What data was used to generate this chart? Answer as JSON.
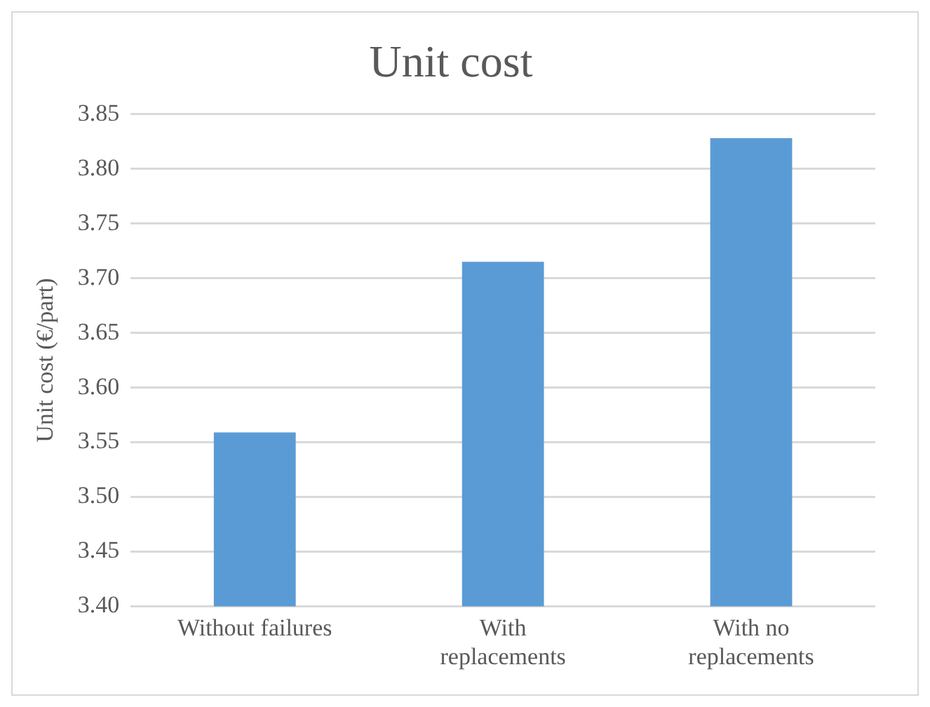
{
  "chart_data": {
    "type": "bar",
    "title": "Unit cost",
    "ylabel": "Unit cost (€/part)",
    "categories": [
      "Without failures",
      "With replacements",
      "With no replacements"
    ],
    "values": [
      3.559,
      3.715,
      3.828
    ],
    "color": "#5b9bd5",
    "ylim": [
      3.4,
      3.85
    ],
    "yticks": [
      {
        "value": 3.4,
        "label": "3.40"
      },
      {
        "value": 3.45,
        "label": "3.45"
      },
      {
        "value": 3.5,
        "label": "3.50"
      },
      {
        "value": 3.55,
        "label": "3.55"
      },
      {
        "value": 3.6,
        "label": "3.60"
      },
      {
        "value": 3.65,
        "label": "3.65"
      },
      {
        "value": 3.7,
        "label": "3.70"
      },
      {
        "value": 3.75,
        "label": "3.75"
      },
      {
        "value": 3.8,
        "label": "3.80"
      },
      {
        "value": 3.85,
        "label": "3.85"
      }
    ],
    "grid": "y"
  }
}
